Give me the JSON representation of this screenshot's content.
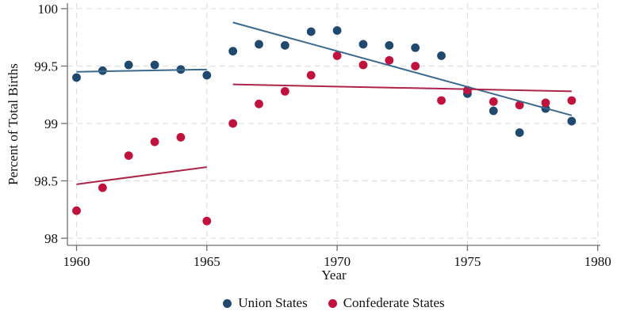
{
  "chart_data": {
    "type": "scatter",
    "title": "",
    "xlabel": "Year",
    "ylabel": "Percent of Total Births",
    "xlim": [
      1959.65,
      1980.1
    ],
    "ylim": [
      97.938,
      100.048
    ],
    "grid": "dashed-both-axes",
    "legend_position": "bottom-center",
    "x_ticks": {
      "values": [
        1960,
        1965,
        1970,
        1975,
        1980
      ],
      "labels": [
        "1960",
        "1965",
        "1970",
        "1975",
        "1980"
      ]
    },
    "y_ticks": {
      "values": [
        98,
        98.5,
        99,
        99.5,
        100
      ],
      "labels": [
        "98",
        "98.5",
        "99",
        "99.5",
        "100"
      ]
    },
    "years": [
      1960,
      1961,
      1962,
      1963,
      1964,
      1965,
      1966,
      1967,
      1968,
      1969,
      1970,
      1971,
      1972,
      1973,
      1974,
      1975,
      1976,
      1977,
      1978,
      1979
    ],
    "series": [
      {
        "name": "Union States",
        "marker_color": "#1f496e",
        "line_color": "#3c6a8e",
        "values": [
          99.4,
          99.46,
          99.51,
          99.51,
          99.47,
          99.42,
          99.63,
          99.69,
          99.68,
          99.8,
          99.81,
          99.69,
          99.68,
          99.66,
          99.59,
          99.26,
          99.11,
          98.92,
          99.13,
          99.02
        ]
      },
      {
        "name": "Confederate States",
        "marker_color": "#c1123e",
        "line_color": "#ac2449",
        "values": [
          98.24,
          98.44,
          98.72,
          98.84,
          98.88,
          98.15,
          99.0,
          99.17,
          99.28,
          99.42,
          99.59,
          99.51,
          99.55,
          99.5,
          99.2,
          99.29,
          99.19,
          99.16,
          99.18,
          99.2
        ]
      }
    ],
    "fit_lines": [
      {
        "series": "Union States",
        "label": "pre-1966 linear fit",
        "x": [
          1960,
          1965
        ],
        "y": [
          99.45,
          99.47
        ]
      },
      {
        "series": "Union States",
        "label": "post-1966 linear fit",
        "x": [
          1966,
          1979
        ],
        "y": [
          99.88,
          99.07
        ]
      },
      {
        "series": "Confederate States",
        "label": "pre-1966 linear fit",
        "x": [
          1960,
          1965
        ],
        "y": [
          98.47,
          98.62
        ]
      },
      {
        "series": "Confederate States",
        "label": "post-1966 linear fit",
        "x": [
          1966,
          1979
        ],
        "y": [
          99.34,
          99.28
        ]
      }
    ]
  },
  "legend": {
    "items": [
      {
        "label": "Union States"
      },
      {
        "label": "Confederate States"
      }
    ]
  }
}
